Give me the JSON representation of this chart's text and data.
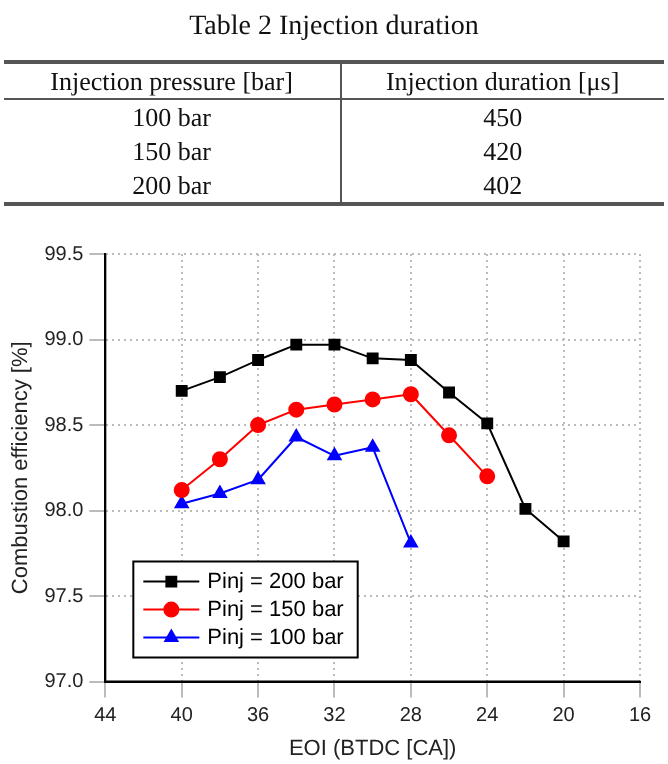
{
  "chart_data": [
    {
      "type": "other",
      "title": "Table 2 Injection duration",
      "xlabel": "Injection pressure [bar]",
      "ylabel": "Injection duration [μs]",
      "categories": [
        "100 bar",
        "150 bar",
        "200 bar"
      ],
      "values": [
        450,
        420,
        402
      ],
      "data_labels": true
    },
    {
      "type": "line",
      "xlabel": "EOI (BTDC [CA])",
      "ylabel": "Combustion efficiency [%]",
      "xlim": [
        44,
        16
      ],
      "xticks": [
        44,
        40,
        36,
        32,
        28,
        24,
        20,
        16
      ],
      "ylim": [
        97,
        99.5
      ],
      "yticks": [
        {
          "value": 97,
          "label": "97.0"
        },
        97.5,
        {
          "value": 98,
          "label": "98.0"
        },
        98.5,
        {
          "value": 99,
          "label": "99.0"
        },
        99.5
      ],
      "grid": true,
      "legend": "bottom left",
      "line_style": "solid",
      "series": [
        {
          "name": "Pinj = 200 bar",
          "color": "#000000",
          "marker": "square",
          "x": [
            40,
            38,
            36,
            34,
            32,
            30,
            28,
            26,
            24,
            22,
            20
          ],
          "values": [
            98.7,
            98.78,
            98.88,
            98.97,
            98.97,
            98.89,
            98.88,
            98.69,
            98.51,
            98.01,
            97.82
          ]
        },
        {
          "name": "Pinj = 150 bar",
          "color": "#ff0000",
          "marker": "circle",
          "x": [
            40,
            38,
            36,
            34,
            32,
            30,
            28,
            26,
            24
          ],
          "values": [
            98.12,
            98.3,
            98.5,
            98.59,
            98.62,
            98.65,
            98.68,
            98.44,
            98.2
          ]
        },
        {
          "name": "Pinj = 100 bar",
          "color": "#0000ff",
          "marker": "triangle",
          "x": [
            40,
            38,
            36,
            34,
            32,
            30,
            28
          ],
          "values": [
            98.04,
            98.1,
            98.18,
            98.43,
            98.32,
            98.37,
            97.81
          ]
        }
      ]
    }
  ]
}
